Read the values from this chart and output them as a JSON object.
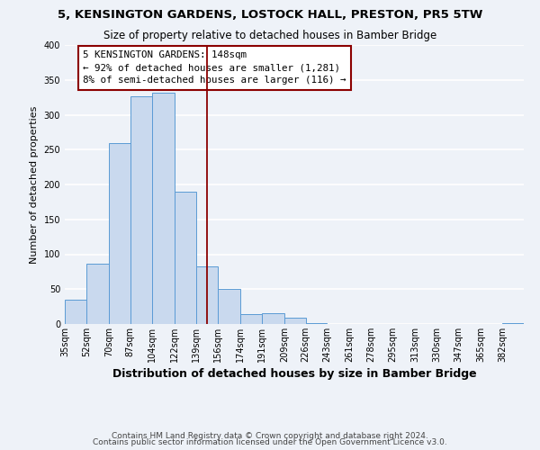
{
  "title": "5, KENSINGTON GARDENS, LOSTOCK HALL, PRESTON, PR5 5TW",
  "subtitle": "Size of property relative to detached houses in Bamber Bridge",
  "xlabel": "Distribution of detached houses by size in Bamber Bridge",
  "ylabel": "Number of detached properties",
  "bin_labels": [
    "35sqm",
    "52sqm",
    "70sqm",
    "87sqm",
    "104sqm",
    "122sqm",
    "139sqm",
    "156sqm",
    "174sqm",
    "191sqm",
    "209sqm",
    "226sqm",
    "243sqm",
    "261sqm",
    "278sqm",
    "295sqm",
    "313sqm",
    "330sqm",
    "347sqm",
    "365sqm",
    "382sqm"
  ],
  "bar_heights": [
    35,
    86,
    260,
    327,
    331,
    190,
    82,
    50,
    14,
    15,
    9,
    1,
    0,
    0,
    0,
    0,
    0,
    0,
    0,
    0,
    1
  ],
  "bar_color": "#c9d9ee",
  "bar_edge_color": "#5b9bd5",
  "bin_edges": [
    35,
    52,
    70,
    87,
    104,
    122,
    139,
    156,
    174,
    191,
    209,
    226,
    243,
    261,
    278,
    295,
    313,
    330,
    347,
    365,
    382,
    399
  ],
  "annotation_title": "5 KENSINGTON GARDENS: 148sqm",
  "annotation_line1": "← 92% of detached houses are smaller (1,281)",
  "annotation_line2": "8% of semi-detached houses are larger (116) →",
  "annotation_box_color": "#8b0000",
  "vline_color": "#8b0000",
  "vline_x": 148,
  "ylim": [
    0,
    400
  ],
  "yticks": [
    0,
    50,
    100,
    150,
    200,
    250,
    300,
    350,
    400
  ],
  "footer1": "Contains HM Land Registry data © Crown copyright and database right 2024.",
  "footer2": "Contains public sector information licensed under the Open Government Licence v3.0.",
  "background_color": "#eef2f8",
  "grid_color": "#ffffff",
  "title_fontsize": 9.5,
  "subtitle_fontsize": 8.5,
  "xlabel_fontsize": 9,
  "ylabel_fontsize": 8,
  "tick_fontsize": 7,
  "annotation_fontsize": 7.8,
  "footer_fontsize": 6.5
}
